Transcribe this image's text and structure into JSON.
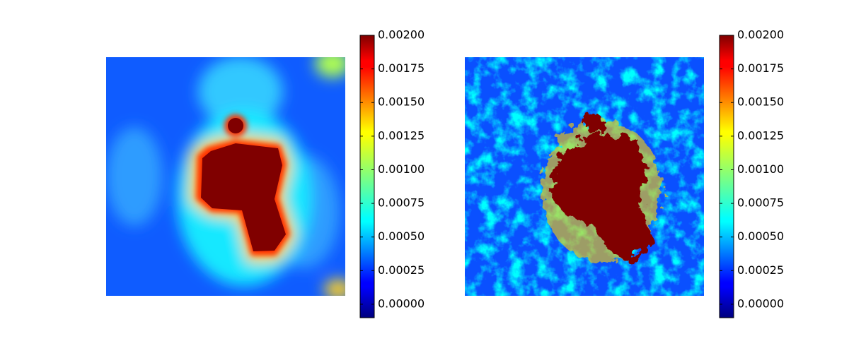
{
  "chart_data": [
    {
      "type": "heatmap",
      "colormap": "jet",
      "clim": [
        -0.0001,
        0.002
      ],
      "colorbar_ticks": [
        {
          "value": 0,
          "label": "0.00000"
        },
        {
          "value": 0.00025,
          "label": "0.00025"
        },
        {
          "value": 0.0005,
          "label": "0.00050"
        },
        {
          "value": 0.00075,
          "label": "0.00075"
        },
        {
          "value": 0.001,
          "label": "0.00100"
        },
        {
          "value": 0.00125,
          "label": "0.00125"
        },
        {
          "value": 0.0015,
          "label": "0.00150"
        },
        {
          "value": 0.00175,
          "label": "0.00175"
        },
        {
          "value": 0.002,
          "label": "0.00200"
        }
      ]
    },
    {
      "type": "heatmap",
      "colormap": "jet",
      "clim": [
        -0.0001,
        0.002
      ],
      "colorbar_ticks": [
        {
          "value": 0,
          "label": "0.00000"
        },
        {
          "value": 0.00025,
          "label": "0.00025"
        },
        {
          "value": 0.0005,
          "label": "0.00050"
        },
        {
          "value": 0.00075,
          "label": "0.00075"
        },
        {
          "value": 0.001,
          "label": "0.00100"
        },
        {
          "value": 0.00125,
          "label": "0.00125"
        },
        {
          "value": 0.0015,
          "label": "0.00150"
        },
        {
          "value": 0.00175,
          "label": "0.00175"
        },
        {
          "value": 0.002,
          "label": "0.00200"
        }
      ]
    }
  ]
}
